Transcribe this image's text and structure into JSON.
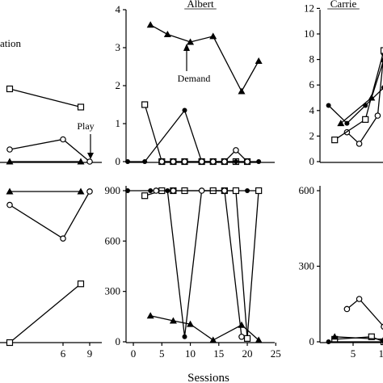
{
  "chart_data": [
    {
      "type": "line",
      "panel": "left-top",
      "title": "",
      "xlabel": "",
      "ylabel": "",
      "xticks": [],
      "yticks": [],
      "annotations": [
        {
          "text": "ation",
          "x": 0,
          "y": 0
        },
        {
          "text": "Play",
          "x": 9,
          "y": 0
        }
      ],
      "series": [
        {
          "marker": "square-open",
          "x": [
            0,
            8
          ],
          "y": [
            1.8,
            1.35
          ]
        },
        {
          "marker": "circle-open",
          "x": [
            0,
            6,
            9
          ],
          "y": [
            0.3,
            0.55,
            0
          ]
        },
        {
          "marker": "triangle",
          "x": [
            0,
            8
          ],
          "y": [
            0,
            0
          ]
        }
      ]
    },
    {
      "type": "line",
      "panel": "albert-top",
      "title": "Albert",
      "xlabel": "",
      "ylabel": "",
      "ylim": [
        0,
        4
      ],
      "yticks": [
        "0",
        "1",
        "2",
        "3",
        "4"
      ],
      "annotations": [
        {
          "text": "Demand",
          "x": 10,
          "y": 3.1
        }
      ],
      "series": [
        {
          "marker": "triangle",
          "x": [
            3,
            6,
            10,
            14,
            19,
            22
          ],
          "y": [
            3.6,
            3.35,
            3.15,
            3.3,
            1.85,
            2.65
          ]
        },
        {
          "marker": "square-open",
          "x": [
            2,
            5,
            7,
            9,
            12,
            14,
            16,
            18,
            20
          ],
          "y": [
            1.5,
            0,
            0,
            0,
            0,
            0,
            0,
            0,
            0
          ]
        },
        {
          "marker": "circle-filled",
          "x": [
            -1,
            2,
            9,
            12,
            14,
            16,
            18,
            20,
            22
          ],
          "y": [
            0,
            0,
            1.35,
            0,
            0,
            0,
            0,
            0,
            0
          ]
        },
        {
          "marker": "circle-open",
          "x": [
            5,
            7,
            9,
            12,
            14,
            16,
            18,
            20
          ],
          "y": [
            0,
            0,
            0,
            0,
            0,
            0,
            0.3,
            0
          ]
        }
      ]
    },
    {
      "type": "line",
      "panel": "carrie-top",
      "title": "Carrie",
      "xlabel": "",
      "ylabel": "",
      "ylim": [
        0,
        12
      ],
      "yticks": [
        "0",
        "2",
        "4",
        "6",
        "8",
        "10",
        "12"
      ],
      "series": [
        {
          "marker": "circle-filled",
          "x": [
            1,
            4,
            7,
            10
          ],
          "y": [
            4.4,
            3,
            4.4,
            5.8
          ]
        },
        {
          "marker": "triangle",
          "x": [
            3,
            8,
            10
          ],
          "y": [
            3,
            5,
            8
          ]
        },
        {
          "marker": "circle-open",
          "x": [
            4,
            6,
            9,
            10
          ],
          "y": [
            2.3,
            1.4,
            3.6,
            8.5
          ]
        },
        {
          "marker": "square-open",
          "x": [
            2,
            7,
            10
          ],
          "y": [
            1.7,
            3.3,
            8.7
          ]
        }
      ]
    },
    {
      "type": "line",
      "panel": "left-bottom",
      "title": "",
      "xlabel": "",
      "ylabel": "",
      "xticks": [
        "6",
        "9"
      ],
      "series": [
        {
          "marker": "triangle",
          "x": [
            0,
            8
          ],
          "y": [
            900,
            900
          ]
        },
        {
          "marker": "circle-open",
          "x": [
            0,
            6,
            9
          ],
          "y": [
            820,
            620,
            900
          ]
        },
        {
          "marker": "square-open",
          "x": [
            0,
            8
          ],
          "y": [
            0,
            350
          ]
        }
      ]
    },
    {
      "type": "line",
      "panel": "albert-bottom",
      "title": "",
      "xlabel": "Sessions",
      "ylabel": "",
      "ylim": [
        0,
        900
      ],
      "xlim": [
        -1,
        25
      ],
      "xticks": [
        "0",
        "5",
        "10",
        "15",
        "20",
        "25"
      ],
      "yticks": [
        "0",
        "300",
        "600",
        "900"
      ],
      "series": [
        {
          "marker": "circle-filled",
          "x": [
            -1,
            3,
            6,
            9,
            12,
            14,
            16,
            18,
            20,
            22
          ],
          "y": [
            900,
            900,
            900,
            30,
            900,
            900,
            900,
            900,
            900,
            900
          ]
        },
        {
          "marker": "square-open",
          "x": [
            2,
            5,
            7,
            9,
            14,
            16,
            18,
            20,
            22
          ],
          "y": [
            870,
            900,
            900,
            900,
            900,
            900,
            900,
            20,
            900
          ]
        },
        {
          "marker": "circle-open",
          "x": [
            4,
            7,
            12,
            16,
            19
          ],
          "y": [
            900,
            900,
            900,
            900,
            30
          ]
        },
        {
          "marker": "triangle",
          "x": [
            3,
            7,
            10,
            14,
            19,
            22
          ],
          "y": [
            155,
            125,
            105,
            10,
            100,
            10
          ]
        }
      ]
    },
    {
      "type": "line",
      "panel": "carrie-bottom",
      "title": "",
      "xlabel": "",
      "ylabel": "",
      "ylim": [
        0,
        600
      ],
      "xticks": [
        "5",
        "10"
      ],
      "yticks": [
        "0",
        "300",
        "600"
      ],
      "series": [
        {
          "marker": "circle-open",
          "x": [
            4,
            6,
            10
          ],
          "y": [
            130,
            170,
            60
          ]
        },
        {
          "marker": "square-open",
          "x": [
            2,
            8,
            10
          ],
          "y": [
            10,
            20,
            0
          ]
        },
        {
          "marker": "triangle",
          "x": [
            2,
            10
          ],
          "y": [
            20,
            10
          ]
        },
        {
          "marker": "circle-filled",
          "x": [
            1,
            10
          ],
          "y": [
            0,
            0
          ]
        }
      ]
    }
  ]
}
